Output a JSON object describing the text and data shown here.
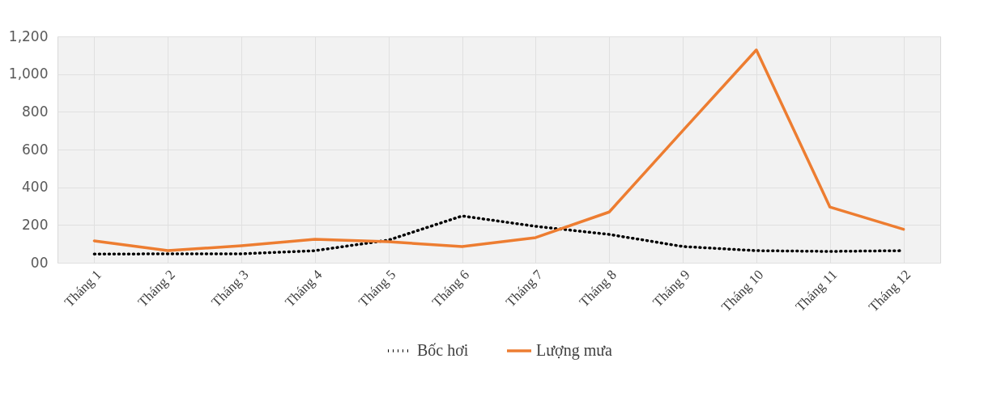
{
  "chart_data": {
    "type": "line",
    "categories": [
      "Tháng 1",
      "Tháng 2",
      "Tháng 3",
      "Tháng 4",
      "Tháng 5",
      "Tháng 6",
      "Tháng 7",
      "Tháng 8",
      "Tháng 9",
      "Tháng 10",
      "Tháng 11",
      "Tháng 12"
    ],
    "series": [
      {
        "name": "Bốc hơi",
        "color": "#000000",
        "line_style": "dotted",
        "values": [
          46,
          47,
          47,
          64,
          120,
          248,
          193,
          150,
          86,
          64,
          60,
          64
        ]
      },
      {
        "name": "Lượng mưa",
        "color": "#ed7d31",
        "line_style": "solid",
        "values": [
          116,
          64,
          90,
          124,
          111,
          86,
          133,
          269,
          700,
          1128,
          295,
          177
        ]
      }
    ],
    "ylim": [
      0,
      1200
    ],
    "yticks": [
      {
        "value": 0,
        "label": "00"
      },
      200,
      400,
      600,
      800,
      {
        "value": 1000,
        "label": "1,000"
      },
      {
        "value": 1200,
        "label": "1,200"
      }
    ],
    "grid": true,
    "legend": "bottom"
  }
}
